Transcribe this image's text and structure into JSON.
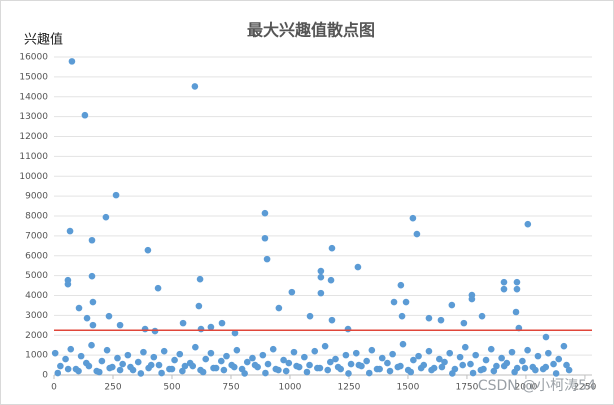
{
  "chart_data": {
    "type": "scatter",
    "title": "最大兴趣值散点图",
    "y_label": "兴趣值",
    "watermark": "CSDN @小柯涛54",
    "color": "#5b9bd5",
    "grid": true,
    "hline": {
      "value": 2250,
      "color": "#e0463a"
    },
    "xlim": [
      0,
      2280
    ],
    "xticks": [
      0,
      250,
      500,
      750,
      1000,
      1250,
      1500,
      1750,
      2000,
      2250
    ],
    "ylim": [
      0,
      16000
    ],
    "yticks": [
      0,
      1000,
      2000,
      3000,
      4000,
      5000,
      6000,
      7000,
      8000,
      9000,
      10000,
      11000,
      12000,
      13000,
      14000,
      15000,
      16000
    ],
    "x": [
      76,
      131,
      68,
      59,
      59,
      106,
      161,
      161,
      165,
      140,
      165,
      220,
      263,
      233,
      280,
      398,
      441,
      386,
      428,
      547,
      597,
      619,
      614,
      623,
      665,
      712,
      767,
      894,
      894,
      903,
      953,
      1008,
      1085,
      1131,
      1131,
      1131,
      1178,
      1174,
      1178,
      1288,
      1246,
      1441,
      1470,
      1492,
      1521,
      1538,
      1475,
      1589,
      1640,
      1686,
      1771,
      1771,
      1737,
      1814,
      1907,
      1907,
      1962,
      1962,
      1958,
      1970,
      2008,
      2085,
      5,
      27,
      49,
      71,
      93,
      115,
      137,
      159,
      181,
      203,
      225,
      247,
      269,
      291,
      313,
      335,
      357,
      379,
      401,
      423,
      445,
      467,
      489,
      511,
      533,
      555,
      577,
      599,
      621,
      643,
      665,
      687,
      709,
      731,
      753,
      775,
      797,
      819,
      841,
      863,
      885,
      907,
      929,
      951,
      973,
      995,
      1017,
      1039,
      1061,
      1083,
      1105,
      1127,
      1149,
      1171,
      1193,
      1215,
      1237,
      1259,
      1281,
      1303,
      1325,
      1347,
      1369,
      1391,
      1413,
      1435,
      1457,
      1479,
      1501,
      1523,
      1545,
      1567,
      1589,
      1611,
      1633,
      1655,
      1677,
      1699,
      1721,
      1743,
      1765,
      1787,
      1809,
      1831,
      1853,
      1875,
      1897,
      1919,
      1941,
      1963,
      1985,
      2007,
      2029,
      2051,
      2073,
      2095,
      2117,
      2139,
      2161,
      2183,
      16,
      60,
      104,
      148,
      192,
      236,
      280,
      324,
      368,
      412,
      456,
      500,
      544,
      588,
      632,
      676,
      720,
      764,
      808,
      852,
      896,
      940,
      984,
      1028,
      1072,
      1116,
      1160,
      1204,
      1248,
      1292,
      1336,
      1380,
      1424,
      1468,
      1512,
      1556,
      1600,
      1644,
      1688,
      1732,
      1776,
      1820,
      1864,
      1908,
      1952,
      1996,
      2040,
      2084,
      2128,
      2172
    ],
    "values": [
      15780,
      13070,
      7240,
      4770,
      4570,
      3370,
      6780,
      4970,
      3670,
      2860,
      2510,
      7940,
      9050,
      2960,
      2510,
      6280,
      4370,
      2310,
      2210,
      2610,
      14520,
      4820,
      3470,
      2310,
      2410,
      2610,
      2110,
      8140,
      6880,
      5830,
      3370,
      4170,
      2960,
      5230,
      4920,
      4120,
      6380,
      4770,
      2760,
      5430,
      2310,
      3670,
      4520,
      3670,
      7890,
      7090,
      2960,
      2860,
      2760,
      3520,
      4020,
      3820,
      2610,
      2960,
      4670,
      4320,
      4670,
      4320,
      3170,
      2360,
      7590,
      1910,
      1100,
      450,
      800,
      1300,
      300,
      950,
      600,
      1500,
      200,
      700,
      1250,
      400,
      850,
      550,
      1000,
      250,
      650,
      1150,
      350,
      900,
      500,
      1200,
      300,
      750,
      1050,
      450,
      600,
      1400,
      250,
      800,
      1100,
      350,
      700,
      950,
      500,
      1250,
      300,
      650,
      850,
      400,
      1000,
      550,
      1300,
      250,
      750,
      600,
      1150,
      400,
      900,
      500,
      1200,
      350,
      1450,
      650,
      800,
      300,
      1000,
      550,
      1100,
      450,
      700,
      1250,
      300,
      850,
      600,
      1050,
      400,
      1550,
      250,
      750,
      950,
      500,
      1200,
      350,
      800,
      650,
      1100,
      300,
      900,
      1400,
      550,
      1000,
      250,
      750,
      1300,
      450,
      850,
      600,
      1150,
      350,
      700,
      1250,
      400,
      950,
      300,
      1100,
      550,
      800,
      1450,
      250,
      100,
      300,
      200,
      450,
      150,
      350,
      250,
      400,
      80,
      500,
      100,
      300,
      200,
      450,
      150,
      350,
      250,
      400,
      80,
      500,
      100,
      300,
      200,
      450,
      150,
      350,
      250,
      400,
      80,
      500,
      100,
      300,
      200,
      450,
      150,
      350,
      250,
      400,
      80,
      500,
      100,
      300,
      200,
      450,
      150,
      350,
      250,
      400,
      80,
      500
    ]
  }
}
